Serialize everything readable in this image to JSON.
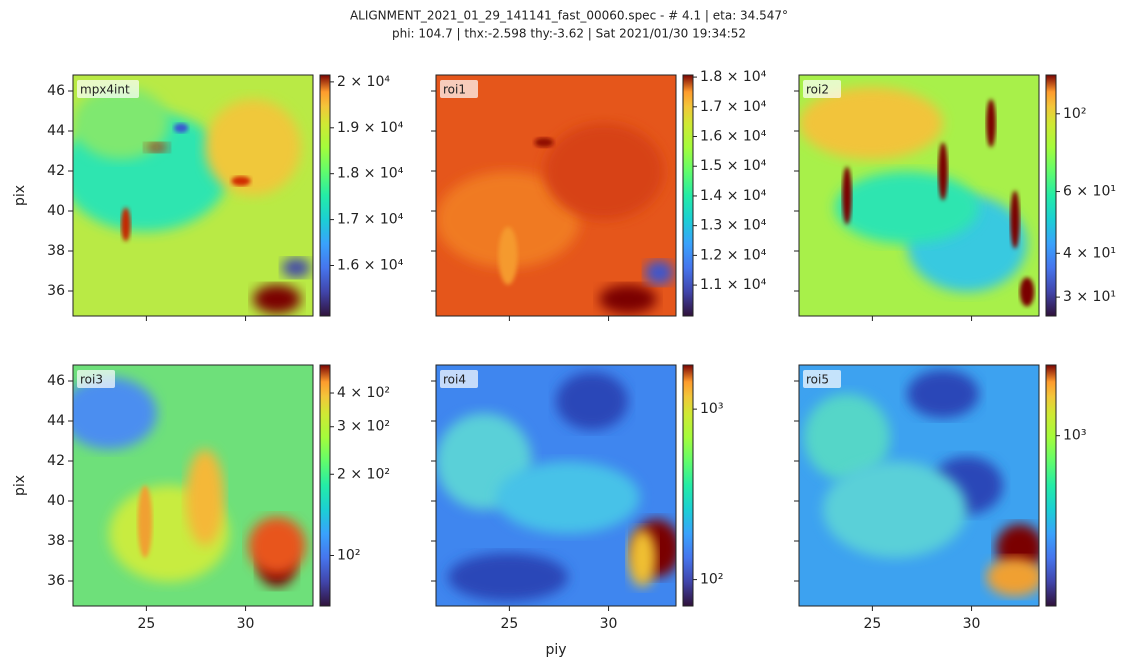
{
  "figure": {
    "title": [
      "ALIGNMENT_2021_01_29_141141_fast_00060.spec - # 4.1 | eta: 34.547°",
      "phi: 104.7 | thx:-2.598 thy:-3.62 | Sat 2021/01/30 19:34:52"
    ],
    "xlabel": "piy"
  },
  "chart_data": [
    {
      "type": "image",
      "label": "mpx4int",
      "ylabel": "pix",
      "xlim": [
        21.3,
        33.4
      ],
      "ylim": [
        34.75,
        46.8
      ],
      "xticks": [
        25,
        30
      ],
      "yticks": [
        36,
        38,
        40,
        42,
        44,
        46
      ],
      "xticklabels": false,
      "yticklabels": true,
      "colorbar": {
        "log": false,
        "lim": [
          14900,
          20150
        ],
        "ticks": [
          {
            "value": 16000,
            "label": "1.6 × 10⁴"
          },
          {
            "value": 17000,
            "label": "1.7 × 10⁴"
          },
          {
            "value": 18000,
            "label": "1.8 × 10⁴"
          },
          {
            "value": 19000,
            "label": "1.9 × 10⁴"
          },
          {
            "value": 20000,
            "label": "2 × 10⁴"
          }
        ]
      }
    },
    {
      "type": "image",
      "label": "roi1",
      "xlim": [
        21.3,
        33.4
      ],
      "ylim": [
        34.75,
        46.8
      ],
      "xticks": [
        25,
        30
      ],
      "yticks": [
        36,
        38,
        40,
        42,
        44,
        46
      ],
      "xticklabels": false,
      "yticklabels": false,
      "colorbar": {
        "log": false,
        "lim": [
          9960,
          18070
        ],
        "ticks": [
          {
            "value": 11000,
            "label": "1.1 × 10⁴"
          },
          {
            "value": 12000,
            "label": "1.2 × 10⁴"
          },
          {
            "value": 13000,
            "label": "1.3 × 10⁴"
          },
          {
            "value": 14000,
            "label": "1.4 × 10⁴"
          },
          {
            "value": 15000,
            "label": "1.5 × 10⁴"
          },
          {
            "value": 16000,
            "label": "1.6 × 10⁴"
          },
          {
            "value": 17000,
            "label": "1.7 × 10⁴"
          },
          {
            "value": 18000,
            "label": "1.8 × 10⁴"
          }
        ]
      }
    },
    {
      "type": "image",
      "label": "roi2",
      "xlim": [
        21.3,
        33.4
      ],
      "ylim": [
        34.75,
        46.8
      ],
      "xticks": [
        25,
        30
      ],
      "yticks": [
        36,
        38,
        40,
        42,
        44,
        46
      ],
      "xticklabels": false,
      "yticklabels": false,
      "colorbar": {
        "log": true,
        "lim": [
          26.5,
          129
        ],
        "ticks": [
          {
            "value": 30,
            "label": "3 × 10¹"
          },
          {
            "value": 40,
            "label": "4 × 10¹"
          },
          {
            "value": 60,
            "label": "6 × 10¹"
          },
          {
            "value": 100,
            "label": "10²"
          }
        ]
      }
    },
    {
      "type": "image",
      "label": "roi3",
      "ylabel": "pix",
      "xlim": [
        21.3,
        33.4
      ],
      "ylim": [
        34.75,
        46.8
      ],
      "xticks": [
        25,
        30
      ],
      "yticks": [
        36,
        38,
        40,
        42,
        44,
        46
      ],
      "xticklabels": true,
      "yticklabels": true,
      "colorbar": {
        "log": true,
        "lim": [
          65,
          508
        ],
        "ticks": [
          {
            "value": 100,
            "label": "10²"
          },
          {
            "value": 200,
            "label": "2 × 10²"
          },
          {
            "value": 300,
            "label": "3 × 10²"
          },
          {
            "value": 400,
            "label": "4 × 10²"
          }
        ]
      }
    },
    {
      "type": "image",
      "label": "roi4",
      "xlim": [
        21.3,
        33.4
      ],
      "ylim": [
        34.75,
        46.8
      ],
      "xticks": [
        25,
        30
      ],
      "yticks": [
        36,
        38,
        40,
        42,
        44,
        46
      ],
      "xticklabels": true,
      "yticklabels": false,
      "colorbar": {
        "log": true,
        "lim": [
          70,
          1815
        ],
        "ticks": [
          {
            "value": 100,
            "label": "10²"
          },
          {
            "value": 1000,
            "label": "10³"
          }
        ]
      }
    },
    {
      "type": "image",
      "label": "roi5",
      "xlim": [
        21.3,
        33.4
      ],
      "ylim": [
        34.75,
        46.8
      ],
      "xticks": [
        25,
        30
      ],
      "yticks": [
        36,
        38,
        40,
        42,
        44,
        46
      ],
      "xticklabels": true,
      "yticklabels": false,
      "colorbar": {
        "log": true,
        "lim": [
          100,
          2600
        ],
        "ticks": [
          {
            "value": 1000,
            "label": "10³"
          }
        ]
      }
    }
  ]
}
